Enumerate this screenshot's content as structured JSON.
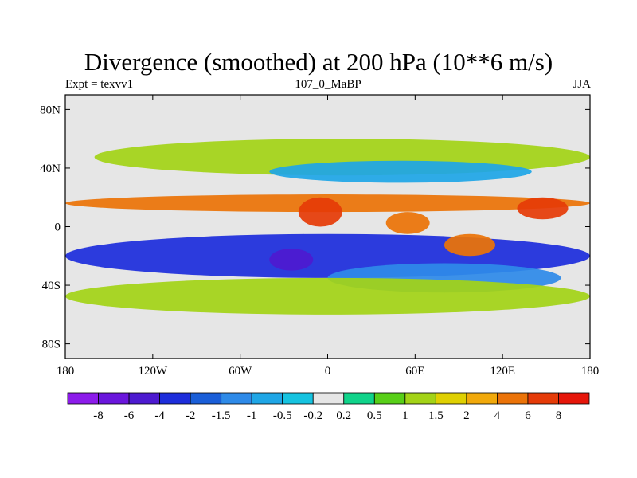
{
  "chart_data": {
    "type": "contour-map",
    "title": "Divergence (smoothed) at 200 hPa (10**6 m/s)",
    "left_string": "Expt = texvv1",
    "center_string": "107_0_MaBP",
    "right_string": "JJA",
    "x_ticks": [
      {
        "value": -180,
        "label": "180"
      },
      {
        "value": -120,
        "label": "120W"
      },
      {
        "value": -60,
        "label": "60W"
      },
      {
        "value": 0,
        "label": "0"
      },
      {
        "value": 60,
        "label": "60E"
      },
      {
        "value": 120,
        "label": "120E"
      },
      {
        "value": 180,
        "label": "180"
      }
    ],
    "y_ticks": [
      {
        "value": 80,
        "label": "80N"
      },
      {
        "value": 40,
        "label": "40N"
      },
      {
        "value": 0,
        "label": "0"
      },
      {
        "value": -40,
        "label": "40S"
      },
      {
        "value": -80,
        "label": "80S"
      }
    ],
    "xlim": [
      -180,
      180
    ],
    "ylim": [
      -90,
      90
    ],
    "colorbar": {
      "levels": [
        "-8",
        "-6",
        "-4",
        "-2",
        "-1.5",
        "-1",
        "-0.5",
        "-0.2",
        "0.2",
        "0.5",
        "1",
        "1.5",
        "2",
        "4",
        "6",
        "8"
      ],
      "colors": [
        "#8c1bea",
        "#6a16dc",
        "#4d1ad0",
        "#1d2ddb",
        "#1a5ed8",
        "#2e8ae8",
        "#1fa6e6",
        "#16c3e0",
        "#e6e6e6",
        "#10d38a",
        "#58cf18",
        "#a3d317",
        "#dfd002",
        "#f1a90b",
        "#eb7308",
        "#e53b08",
        "#e6160a"
      ]
    },
    "features": [
      {
        "name": "equatorial-north-band",
        "value": 4,
        "lon": [
          -180,
          180
        ],
        "lat": [
          10,
          22
        ]
      },
      {
        "name": "equatorial-convergence",
        "value": -4,
        "lon": [
          -180,
          180
        ],
        "lat": [
          -35,
          -5
        ]
      },
      {
        "name": "strong-convergence-south-america",
        "value": -6,
        "lon": [
          -40,
          -10
        ],
        "lat": [
          -30,
          -15
        ]
      },
      {
        "name": "strong-divergence-africa-west",
        "value": 6,
        "lon": [
          -20,
          10
        ],
        "lat": [
          0,
          20
        ]
      },
      {
        "name": "strong-divergence-asia",
        "value": 4,
        "lon": [
          40,
          70
        ],
        "lat": [
          -5,
          10
        ]
      },
      {
        "name": "strong-divergence-west-pacific",
        "value": 6,
        "lon": [
          130,
          165
        ],
        "lat": [
          5,
          20
        ]
      },
      {
        "name": "divergence-indian-ocean",
        "value": 4,
        "lon": [
          80,
          115
        ],
        "lat": [
          -20,
          -5
        ]
      },
      {
        "name": "southern-midlatitude-convergence",
        "value": -1.5,
        "lon": [
          0,
          160
        ],
        "lat": [
          -45,
          -25
        ]
      },
      {
        "name": "southern-midlatitude-divergence",
        "value": 1,
        "lon": [
          -180,
          180
        ],
        "lat": [
          -60,
          -35
        ]
      },
      {
        "name": "northern-midlatitude-divergence",
        "value": 1,
        "lon": [
          -160,
          180
        ],
        "lat": [
          35,
          60
        ]
      },
      {
        "name": "northern-midlatitude-convergence",
        "value": -1,
        "lon": [
          -40,
          140
        ],
        "lat": [
          30,
          45
        ]
      }
    ]
  }
}
